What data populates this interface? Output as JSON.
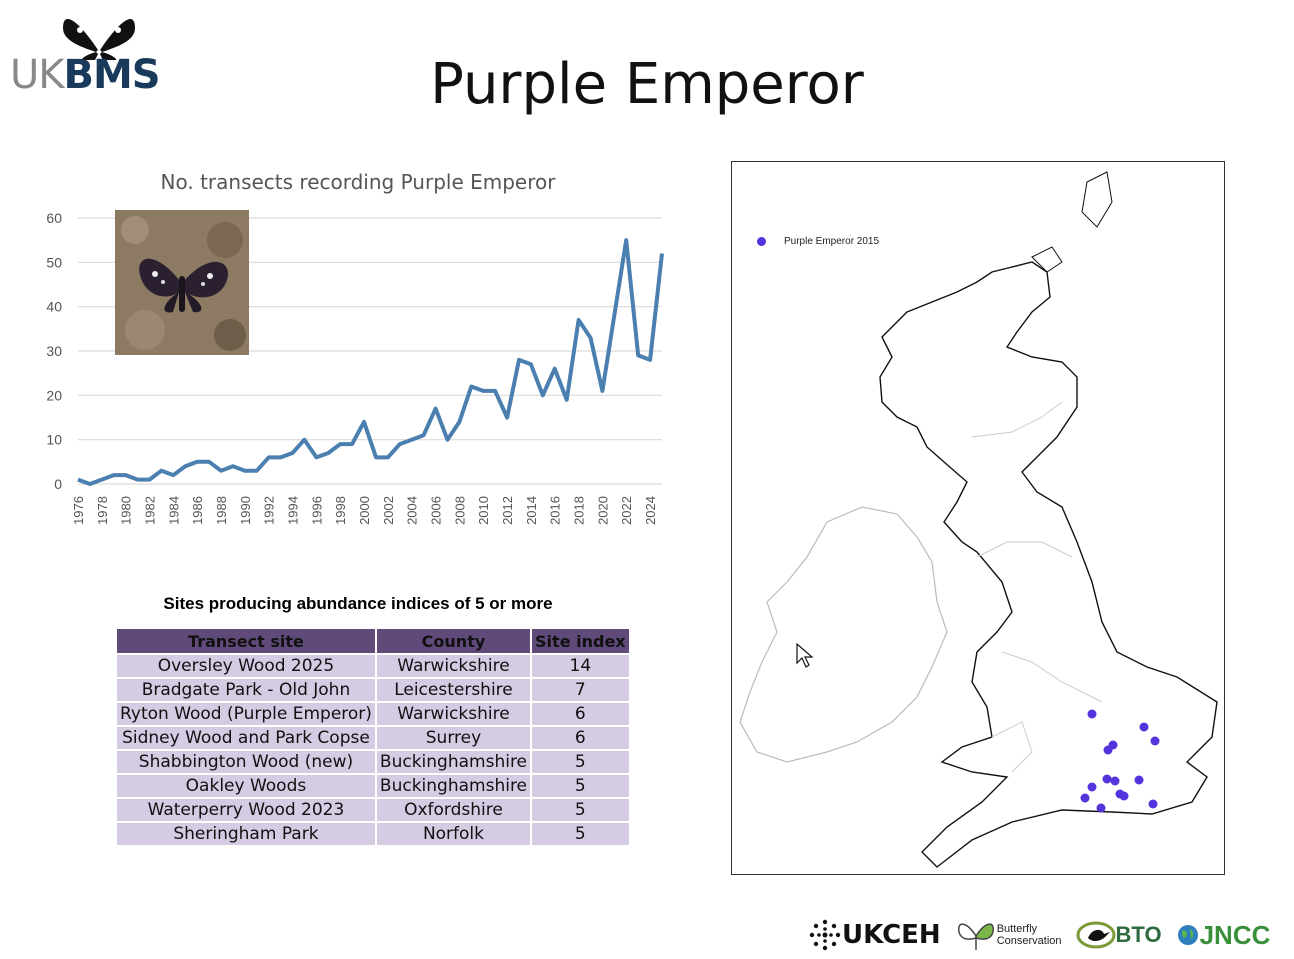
{
  "title": "Purple Emperor",
  "logo": {
    "uk": "UK",
    "bms": "BMS"
  },
  "chart_data": {
    "type": "line",
    "title": "No. transects recording Purple Emperor",
    "x": [
      1976,
      1977,
      1978,
      1979,
      1980,
      1981,
      1982,
      1983,
      1984,
      1985,
      1986,
      1987,
      1988,
      1989,
      1990,
      1991,
      1992,
      1993,
      1994,
      1995,
      1996,
      1997,
      1998,
      1999,
      2000,
      2001,
      2002,
      2003,
      2004,
      2005,
      2006,
      2007,
      2008,
      2009,
      2010,
      2011,
      2012,
      2013,
      2014,
      2015,
      2016,
      2017,
      2018,
      2019,
      2020,
      2021,
      2022,
      2023,
      2024,
      2025
    ],
    "series": [
      {
        "values": [
          1,
          0,
          1,
          2,
          2,
          1,
          1,
          3,
          2,
          4,
          5,
          5,
          3,
          4,
          3,
          3,
          6,
          6,
          7,
          10,
          6,
          7,
          9,
          9,
          14,
          6,
          6,
          9,
          10,
          11,
          17,
          10,
          14,
          22,
          21,
          21,
          15,
          28,
          27,
          20,
          26,
          19,
          37,
          33,
          21,
          38,
          55,
          29,
          28,
          52
        ]
      }
    ],
    "xticks": [
      "1976",
      "1978",
      "1980",
      "1982",
      "1984",
      "1986",
      "1988",
      "1990",
      "1992",
      "1994",
      "1996",
      "1998",
      "2000",
      "2002",
      "2004",
      "2006",
      "2008",
      "2010",
      "2012",
      "2014",
      "2016",
      "2018",
      "2020",
      "2022",
      "2024"
    ],
    "yticks": [
      "0",
      "10",
      "20",
      "30",
      "40",
      "50",
      "60"
    ],
    "ylim": [
      0,
      60
    ],
    "grid": true,
    "color": "#4a7fb0"
  },
  "table": {
    "caption": "Sites producing abundance indices of 5 or more",
    "headers": [
      "Transect site",
      "County",
      "Site index"
    ],
    "rows": [
      [
        "Oversley Wood 2025",
        "Warwickshire",
        "14"
      ],
      [
        "Bradgate Park - Old John",
        "Leicestershire",
        "7"
      ],
      [
        "Ryton Wood (Purple Emperor)",
        "Warwickshire",
        "6"
      ],
      [
        "Sidney Wood and Park Copse",
        "Surrey",
        "6"
      ],
      [
        "Shabbington Wood (new)",
        "Buckinghamshire",
        "5"
      ],
      [
        "Oakley Woods",
        "Buckinghamshire",
        "5"
      ],
      [
        "Waterperry Wood 2023",
        "Oxfordshire",
        "5"
      ],
      [
        "Sheringham Park",
        "Norfolk",
        "5"
      ]
    ]
  },
  "map": {
    "legend": "Purple Emperor 2015",
    "dot_color": "#5533dd"
  },
  "partners": {
    "ukceh": "UKCEH",
    "bc_line1": "Butterfly",
    "bc_line2": "Conservation",
    "bto": "BTO",
    "jncc": "JNCC"
  }
}
